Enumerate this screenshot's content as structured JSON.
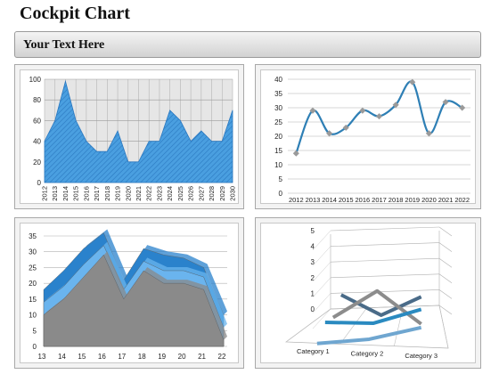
{
  "page": {
    "title": "Cockpit Chart",
    "subtitle": "Your Text Here"
  },
  "chart_data": [
    {
      "type": "area",
      "x": [
        "2012",
        "2013",
        "2014",
        "2015",
        "2016",
        "2017",
        "2018",
        "2019",
        "2020",
        "2021",
        "2022",
        "2023",
        "2024",
        "2025",
        "2026",
        "2027",
        "2028",
        "2029",
        "2030"
      ],
      "values": [
        40,
        60,
        98,
        60,
        40,
        30,
        30,
        50,
        20,
        20,
        40,
        40,
        70,
        60,
        40,
        50,
        40,
        40,
        70
      ],
      "ylim": [
        0,
        100
      ],
      "yticks": [
        0,
        20,
        40,
        60,
        80,
        100
      ],
      "grid": true,
      "title": "",
      "xlabel": "",
      "ylabel": "",
      "color": "#4a9fe0"
    },
    {
      "type": "line",
      "x": [
        "2012",
        "2013",
        "2014",
        "2015",
        "2016",
        "2017",
        "2018",
        "2019",
        "2020",
        "2021",
        "2022"
      ],
      "values": [
        14,
        29,
        21,
        23,
        29,
        27,
        31,
        39,
        21,
        32,
        30
      ],
      "ylim": [
        0,
        40
      ],
      "yticks": [
        0,
        5,
        10,
        15,
        20,
        25,
        30,
        35,
        40
      ],
      "grid": true,
      "title": "",
      "xlabel": "",
      "ylabel": "",
      "color": "#2e7fb5",
      "marker_color": "#9a9a9a"
    },
    {
      "type": "area",
      "stacked": true,
      "three_d": true,
      "x": [
        "13",
        "14",
        "15",
        "16",
        "17",
        "18",
        "19",
        "20",
        "21",
        "22"
      ],
      "series": [
        {
          "values": [
            10,
            15,
            22,
            29,
            15,
            24,
            20,
            20,
            18,
            2
          ],
          "color": "#8a8a8a"
        },
        {
          "values": [
            4,
            4,
            4,
            3,
            3,
            3,
            4,
            4,
            4,
            4
          ],
          "color": "#6ab4ee"
        },
        {
          "values": [
            4,
            5,
            5,
            4,
            3,
            4,
            5,
            4,
            3,
            4
          ],
          "color": "#2a82cc"
        }
      ],
      "ylim": [
        0,
        35
      ],
      "yticks": [
        0,
        5,
        10,
        15,
        20,
        25,
        30,
        35
      ],
      "grid": true,
      "title": "",
      "xlabel": "",
      "ylabel": ""
    },
    {
      "type": "line",
      "three_d": true,
      "categories": [
        "Category 1",
        "Category 2",
        "Category 3"
      ],
      "series": [
        {
          "values": [
            2.6,
            1.2,
            2.4
          ],
          "color": "#4a6b88"
        },
        {
          "values": [
            1.6,
            3.4,
            1.2
          ],
          "color": "#8c8c8c"
        },
        {
          "values": [
            1.8,
            1.8,
            2.8
          ],
          "color": "#2a8ac0"
        },
        {
          "values": [
            0.9,
            1.3,
            2.2
          ],
          "color": "#6fa6d0"
        }
      ],
      "ylim": [
        0,
        5
      ],
      "yticks": [
        0,
        1,
        2,
        3,
        4,
        5
      ],
      "grid": true,
      "title": "",
      "xlabel": "",
      "ylabel": ""
    }
  ]
}
